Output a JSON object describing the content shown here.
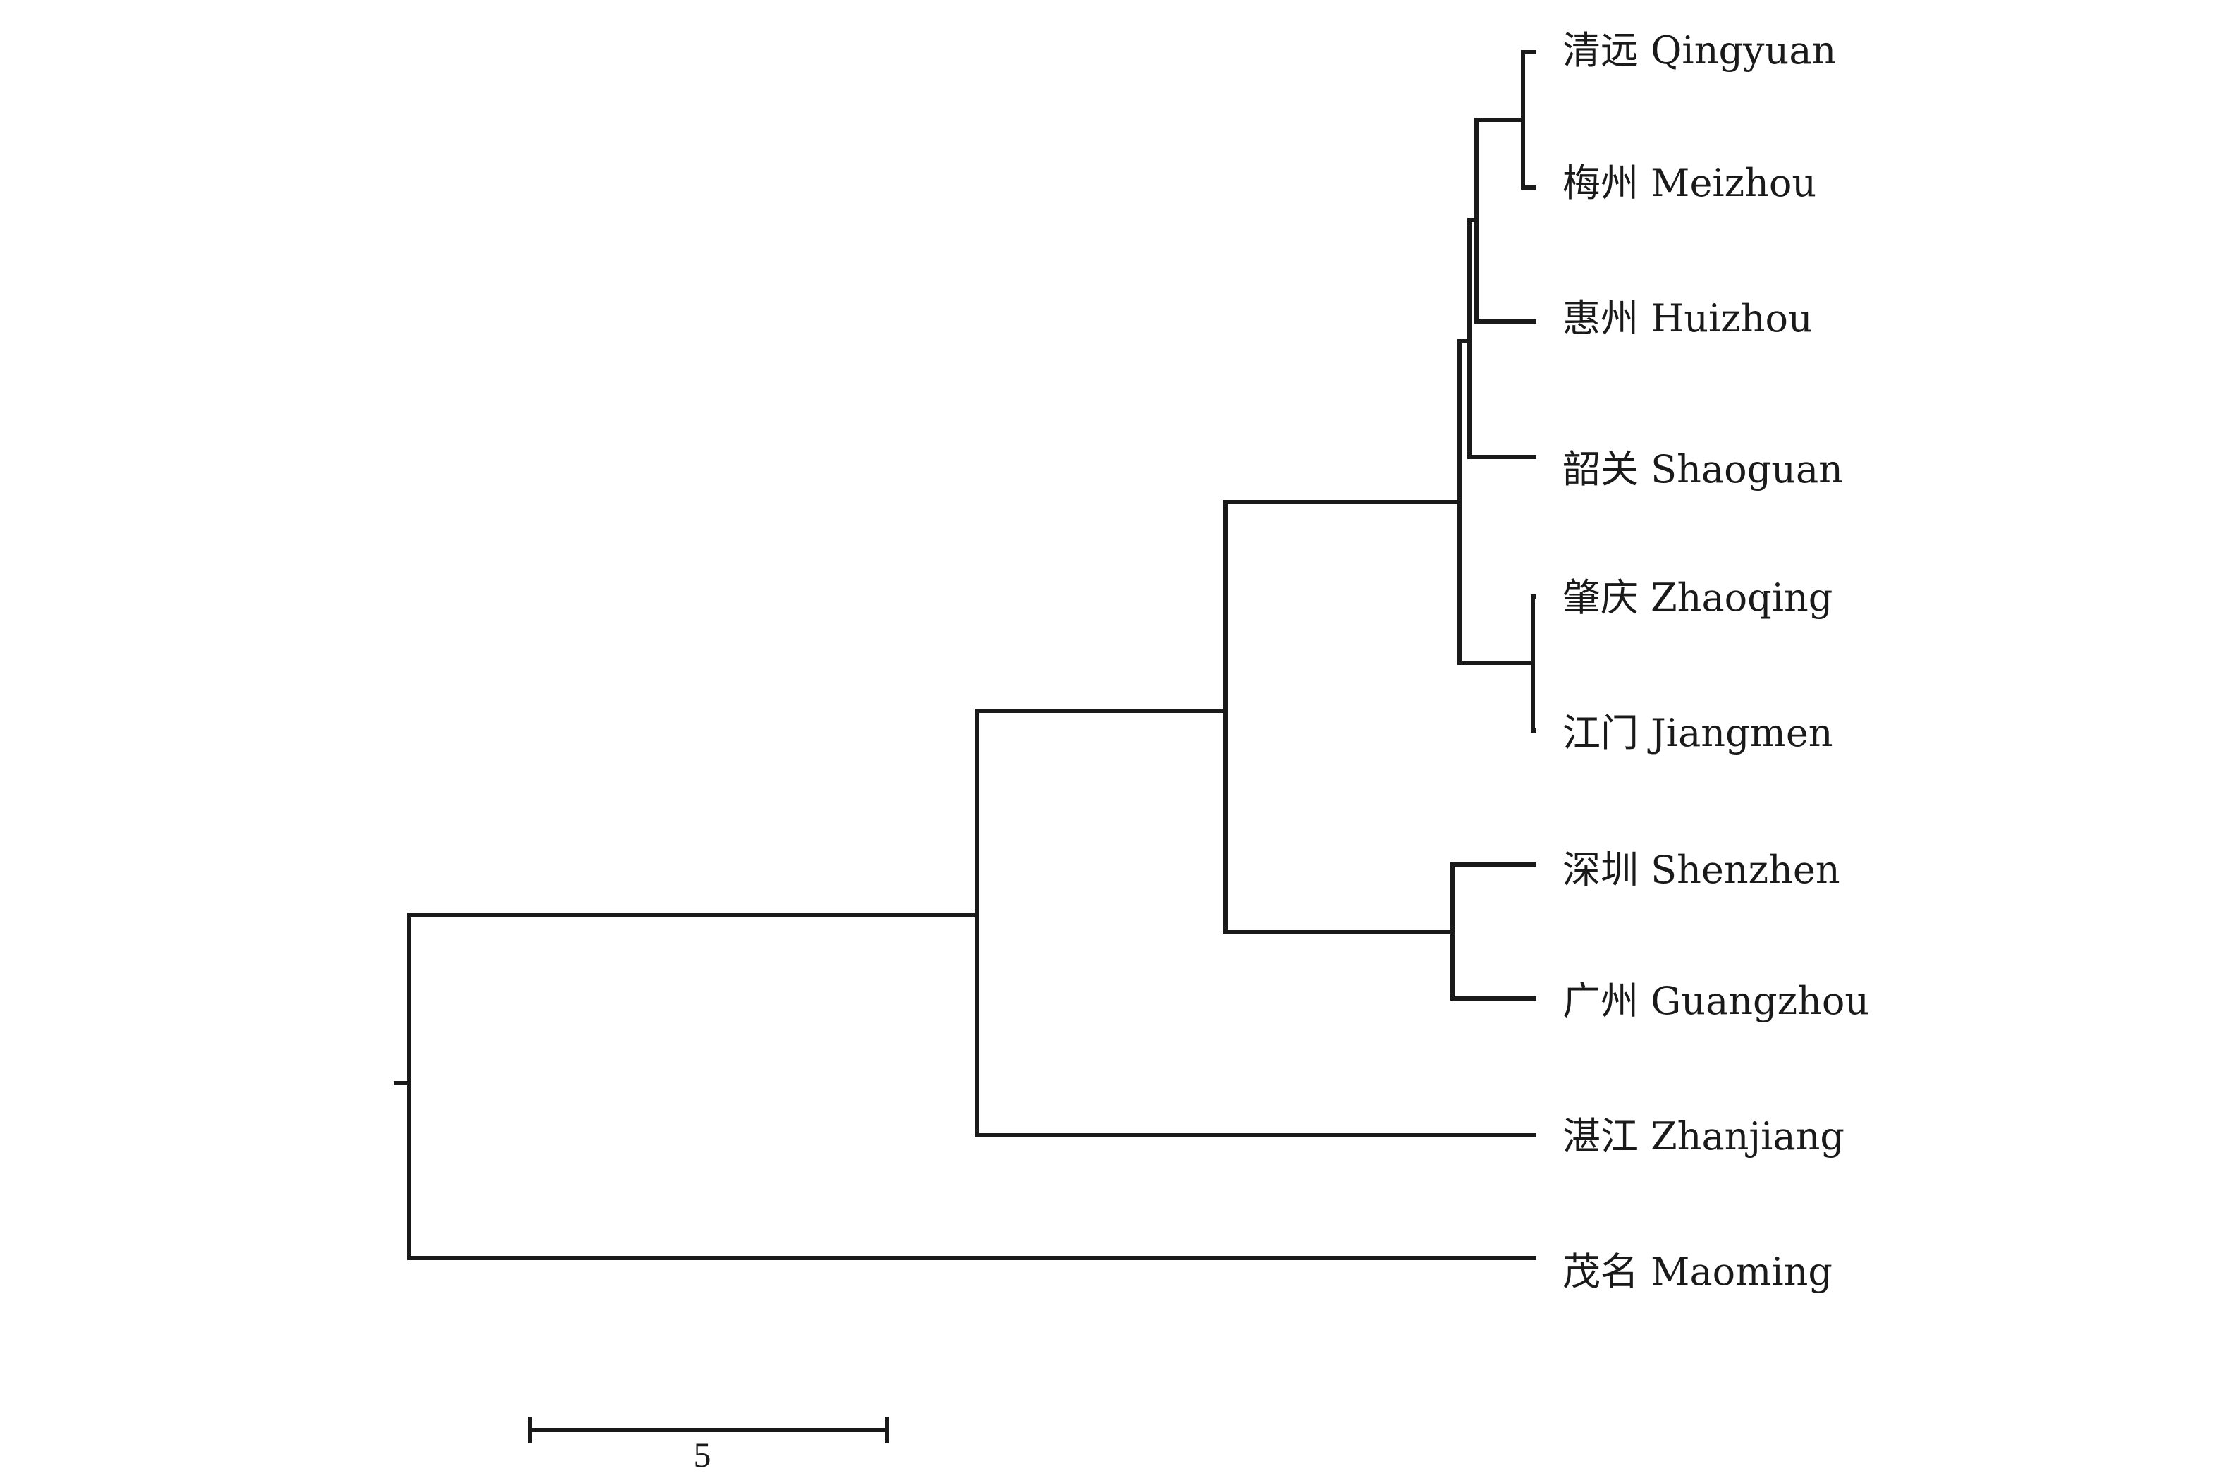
{
  "dendrogram": {
    "leaves": [
      {
        "key": "qingyuan",
        "label": "清远 Qingyuan"
      },
      {
        "key": "meizhou",
        "label": "梅州 Meizhou"
      },
      {
        "key": "huizhou",
        "label": "惠州 Huizhou"
      },
      {
        "key": "shaoguan",
        "label": "韶关 Shaoguan"
      },
      {
        "key": "zhaoqing",
        "label": "肇庆 Zhaoqing"
      },
      {
        "key": "jiangmen",
        "label": "江门 Jiangmen"
      },
      {
        "key": "shenzhen",
        "label": "深圳 Shenzhen"
      },
      {
        "key": "guangzhou",
        "label": "广州 Guangzhou"
      },
      {
        "key": "zhanjiang",
        "label": "湛江 Zhanjiang"
      },
      {
        "key": "maoming",
        "label": "茂名 Maoming"
      }
    ],
    "scale_bar": {
      "value": 5,
      "label": "5"
    },
    "line_color": "#1a1a1a"
  }
}
